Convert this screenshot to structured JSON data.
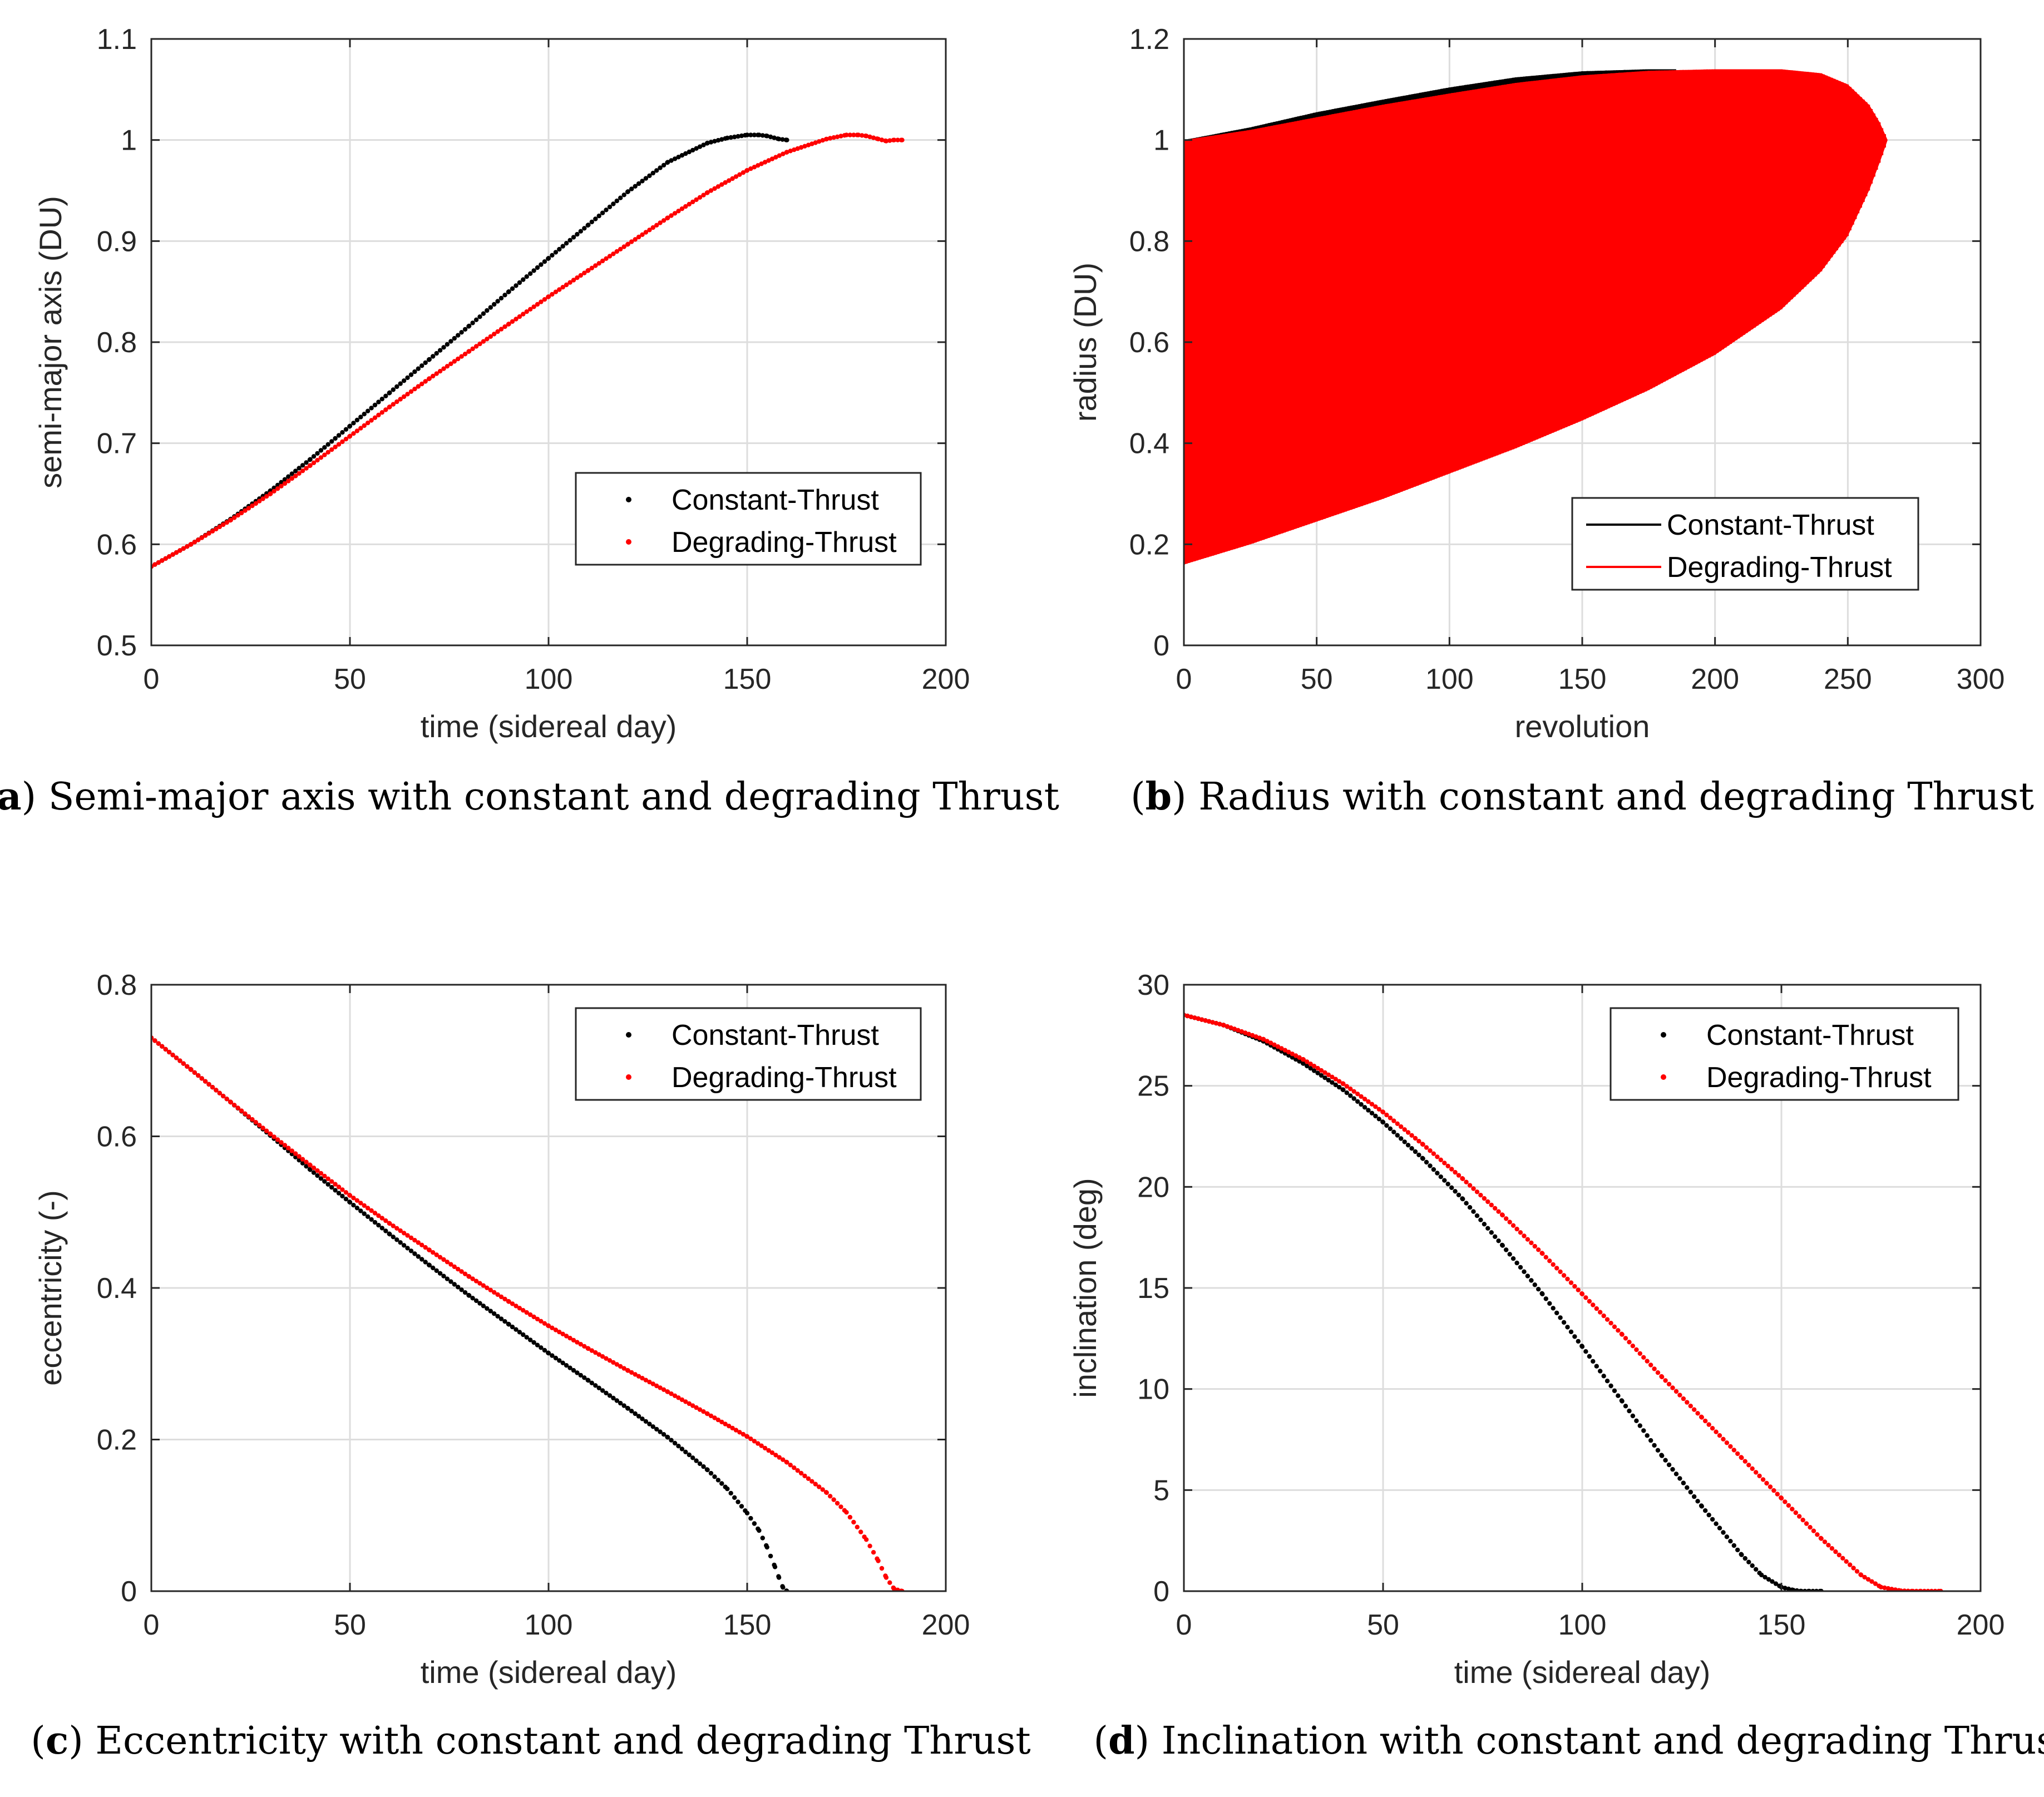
{
  "colors": {
    "constant": "#000000",
    "degrading": "#ff0000",
    "grid": "#dddddd",
    "axis": "#262626"
  },
  "chart_data": [
    {
      "id": "a",
      "type": "scatter",
      "caption_tag": "a",
      "caption_text": "Semi-major axis with constant and degrading Thrust",
      "xlabel": "time (sidereal day)",
      "ylabel": "semi-major axis (DU)",
      "xlim": [
        0,
        200
      ],
      "ylim": [
        0.5,
        1.1
      ],
      "xticks": [
        0,
        50,
        100,
        150,
        200
      ],
      "xtick_labels": [
        "0",
        "50",
        "100",
        "150",
        "200"
      ],
      "yticks": [
        0.5,
        0.6,
        0.7,
        0.8,
        0.9,
        1.0,
        1.1
      ],
      "ytick_labels": [
        "0.5",
        "0.6",
        "0.7",
        "0.8",
        "0.9",
        "1",
        "1.1"
      ],
      "grid": true,
      "legend_position": "lower-right",
      "legend_marker": "dot",
      "series": [
        {
          "name": "Constant-Thrust",
          "color": "#000000",
          "x": [
            0,
            10,
            20,
            30,
            40,
            50,
            60,
            70,
            80,
            90,
            100,
            110,
            120,
            130,
            140,
            145,
            150,
            153,
            155,
            158,
            160
          ],
          "y": [
            0.578,
            0.6,
            0.625,
            0.653,
            0.684,
            0.717,
            0.75,
            0.783,
            0.816,
            0.85,
            0.883,
            0.916,
            0.949,
            0.978,
            0.997,
            1.002,
            1.005,
            1.005,
            1.004,
            1.001,
            1.0
          ]
        },
        {
          "name": "Degrading-Thrust",
          "color": "#ff0000",
          "x": [
            0,
            10,
            20,
            30,
            40,
            50,
            60,
            70,
            80,
            90,
            100,
            110,
            120,
            130,
            140,
            150,
            160,
            170,
            175,
            178,
            180,
            183,
            185,
            187,
            189
          ],
          "y": [
            0.578,
            0.6,
            0.624,
            0.65,
            0.678,
            0.707,
            0.736,
            0.764,
            0.791,
            0.818,
            0.845,
            0.871,
            0.897,
            0.923,
            0.948,
            0.97,
            0.988,
            1.001,
            1.005,
            1.005,
            1.004,
            1.001,
            0.999,
            1.0,
            1.0
          ]
        }
      ]
    },
    {
      "id": "b",
      "type": "line",
      "caption_tag": "b",
      "caption_text": "Radius with constant and degrading Thrust",
      "xlabel": "revolution",
      "ylabel": "radius (DU)",
      "xlim": [
        0,
        300
      ],
      "ylim": [
        0,
        1.2
      ],
      "xticks": [
        0,
        50,
        100,
        150,
        200,
        250,
        300
      ],
      "xtick_labels": [
        "0",
        "50",
        "100",
        "150",
        "200",
        "250",
        "300"
      ],
      "yticks": [
        0,
        0.2,
        0.4,
        0.6,
        0.8,
        1.0,
        1.2
      ],
      "ytick_labels": [
        "0",
        "0.2",
        "0.4",
        "0.6",
        "0.8",
        "1",
        "1.2"
      ],
      "grid": true,
      "legend_position": "lower-right",
      "legend_marker": "line",
      "series": [
        {
          "name": "Constant-Thrust",
          "color": "#000000",
          "x": [
            0,
            25,
            50,
            75,
            100,
            125,
            150,
            175,
            185
          ],
          "upper": [
            1.0,
            1.025,
            1.055,
            1.08,
            1.104,
            1.124,
            1.136,
            1.14,
            1.14
          ],
          "lower": [
            0.16,
            0.205,
            0.25,
            0.3,
            0.355,
            0.41,
            0.47,
            0.53,
            0.555
          ]
        },
        {
          "name": "Degrading-Thrust",
          "color": "#ff0000",
          "x": [
            0,
            25,
            50,
            75,
            100,
            125,
            150,
            175,
            200,
            225,
            240,
            250,
            258,
            262,
            265
          ],
          "upper": [
            1.0,
            1.02,
            1.045,
            1.07,
            1.092,
            1.113,
            1.128,
            1.137,
            1.14,
            1.14,
            1.132,
            1.11,
            1.07,
            1.035,
            1.0
          ],
          "lower": [
            0.16,
            0.2,
            0.245,
            0.29,
            0.34,
            0.39,
            0.445,
            0.505,
            0.575,
            0.665,
            0.74,
            0.81,
            0.9,
            0.955,
            1.0
          ]
        }
      ]
    },
    {
      "id": "c",
      "type": "scatter",
      "caption_tag": "c",
      "caption_text": "Eccentricity with constant and degrading Thrust",
      "xlabel": "time (sidereal day)",
      "ylabel": "eccentricity (-)",
      "xlim": [
        0,
        200
      ],
      "ylim": [
        0,
        0.8
      ],
      "xticks": [
        0,
        50,
        100,
        150,
        200
      ],
      "xtick_labels": [
        "0",
        "50",
        "100",
        "150",
        "200"
      ],
      "yticks": [
        0,
        0.2,
        0.4,
        0.6,
        0.8
      ],
      "ytick_labels": [
        "0",
        "0.2",
        "0.4",
        "0.6",
        "0.8"
      ],
      "grid": true,
      "legend_position": "top-right",
      "legend_marker": "dot",
      "series": [
        {
          "name": "Constant-Thrust",
          "color": "#000000",
          "x": [
            0,
            10,
            20,
            30,
            40,
            50,
            60,
            70,
            80,
            90,
            100,
            110,
            120,
            130,
            140,
            145,
            150,
            153,
            155,
            157,
            158,
            159,
            160
          ],
          "y": [
            0.73,
            0.688,
            0.645,
            0.601,
            0.556,
            0.513,
            0.471,
            0.43,
            0.39,
            0.352,
            0.314,
            0.278,
            0.241,
            0.203,
            0.16,
            0.135,
            0.103,
            0.08,
            0.058,
            0.032,
            0.018,
            0.005,
            0.0
          ]
        },
        {
          "name": "Degrading-Thrust",
          "color": "#ff0000",
          "x": [
            0,
            10,
            20,
            30,
            40,
            50,
            60,
            70,
            80,
            90,
            100,
            110,
            120,
            130,
            140,
            150,
            160,
            170,
            175,
            180,
            183,
            185,
            187,
            189
          ],
          "y": [
            0.73,
            0.688,
            0.645,
            0.603,
            0.562,
            0.522,
            0.485,
            0.45,
            0.415,
            0.382,
            0.35,
            0.32,
            0.291,
            0.263,
            0.234,
            0.204,
            0.17,
            0.13,
            0.104,
            0.068,
            0.04,
            0.018,
            0.003,
            0.0
          ]
        }
      ]
    },
    {
      "id": "d",
      "type": "scatter",
      "caption_tag": "d",
      "caption_text": "Inclination with constant and degrading Thrust",
      "xlabel": "time (sidereal day)",
      "ylabel": "inclination (deg)",
      "xlim": [
        0,
        200
      ],
      "ylim": [
        0,
        30
      ],
      "xticks": [
        0,
        50,
        100,
        150,
        200
      ],
      "xtick_labels": [
        "0",
        "50",
        "100",
        "150",
        "200"
      ],
      "yticks": [
        0,
        5,
        10,
        15,
        20,
        25,
        30
      ],
      "ytick_labels": [
        "0",
        "5",
        "10",
        "15",
        "20",
        "25",
        "30"
      ],
      "grid": true,
      "legend_position": "top-right",
      "legend_marker": "dot",
      "series": [
        {
          "name": "Constant-Thrust",
          "color": "#000000",
          "x": [
            0,
            10,
            20,
            30,
            40,
            50,
            60,
            70,
            80,
            90,
            100,
            110,
            120,
            130,
            140,
            145,
            150,
            153,
            155,
            157,
            160
          ],
          "y": [
            28.5,
            28.0,
            27.2,
            26.1,
            24.8,
            23.2,
            21.4,
            19.4,
            17.1,
            14.7,
            12.1,
            9.4,
            6.7,
            4.2,
            1.8,
            0.8,
            0.2,
            0.05,
            0.0,
            0.0,
            0.0
          ]
        },
        {
          "name": "Degrading-Thrust",
          "color": "#ff0000",
          "x": [
            0,
            10,
            20,
            30,
            40,
            50,
            60,
            70,
            80,
            90,
            100,
            110,
            120,
            130,
            140,
            150,
            160,
            170,
            175,
            180,
            183,
            185,
            190
          ],
          "y": [
            28.5,
            28.0,
            27.3,
            26.3,
            25.1,
            23.7,
            22.1,
            20.4,
            18.6,
            16.7,
            14.7,
            12.7,
            10.6,
            8.6,
            6.6,
            4.6,
            2.6,
            0.8,
            0.2,
            0.02,
            0.0,
            0.0,
            0.0
          ]
        }
      ]
    }
  ]
}
